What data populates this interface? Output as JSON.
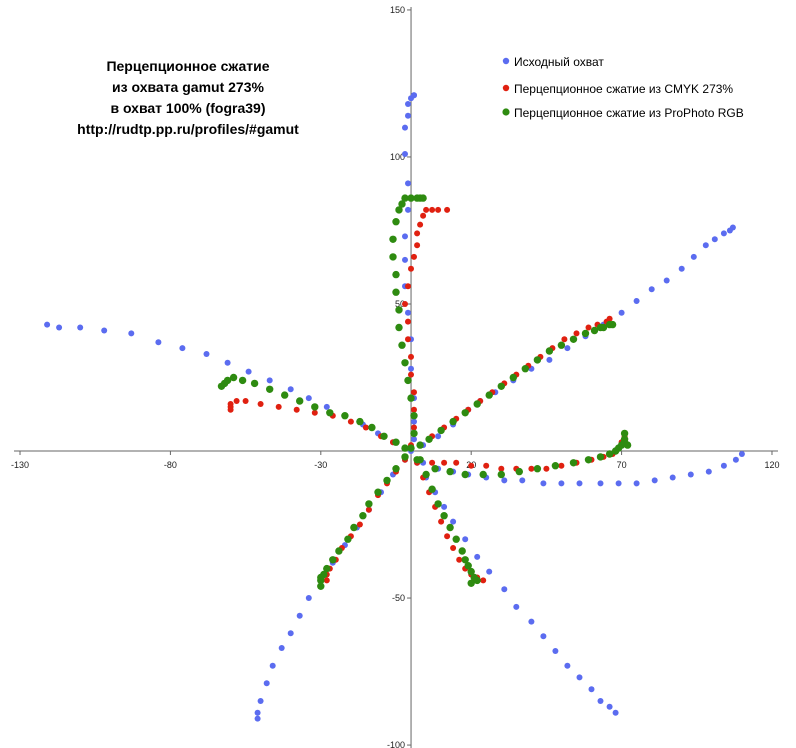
{
  "chart_data": {
    "type": "scatter",
    "title_lines": [
      "Перцепционное сжатие",
      "из охвата gamut 273%",
      "в охват 100% (fogra39)",
      "http://rudtp.pp.ru/profiles/#gamut"
    ],
    "xlim": [
      -132,
      122
    ],
    "ylim": [
      -101,
      151
    ],
    "x_ticks": [
      -130,
      -80,
      -30,
      20,
      70,
      120
    ],
    "x_tick_labels": [
      "-130",
      "-80",
      "-30",
      "20",
      "70",
      "120"
    ],
    "y_ticks": [
      150,
      100,
      50,
      -50,
      -100
    ],
    "y_tick_labels": [
      "150",
      "100",
      "50",
      "-50",
      "-100"
    ],
    "grid": false,
    "legend_position": "top-right",
    "series": [
      {
        "name": "Исходный охват",
        "color": "#5b6cf0",
        "points": [
          [
            0,
            0
          ],
          [
            1,
            4
          ],
          [
            1,
            10
          ],
          [
            1,
            18
          ],
          [
            0,
            28
          ],
          [
            0,
            38
          ],
          [
            -1,
            47
          ],
          [
            -2,
            56
          ],
          [
            -2,
            65
          ],
          [
            -2,
            73
          ],
          [
            -1,
            82
          ],
          [
            -1,
            91
          ],
          [
            -2,
            101
          ],
          [
            -2,
            110
          ],
          [
            -1,
            114
          ],
          [
            -1,
            118
          ],
          [
            0,
            120
          ],
          [
            1,
            121
          ],
          [
            1,
            121
          ],
          [
            4,
            2
          ],
          [
            9,
            5
          ],
          [
            14,
            9
          ],
          [
            19,
            14
          ],
          [
            23,
            17
          ],
          [
            28,
            20
          ],
          [
            34,
            24
          ],
          [
            40,
            28
          ],
          [
            46,
            31
          ],
          [
            52,
            35
          ],
          [
            58,
            39
          ],
          [
            64,
            43
          ],
          [
            70,
            47
          ],
          [
            75,
            51
          ],
          [
            80,
            55
          ],
          [
            85,
            58
          ],
          [
            90,
            62
          ],
          [
            94,
            66
          ],
          [
            98,
            70
          ],
          [
            101,
            72
          ],
          [
            104,
            74
          ],
          [
            106,
            75
          ],
          [
            107,
            76
          ],
          [
            4,
            -4
          ],
          [
            9,
            -6
          ],
          [
            14,
            -7
          ],
          [
            19,
            -8
          ],
          [
            25,
            -9
          ],
          [
            31,
            -10
          ],
          [
            37,
            -10
          ],
          [
            44,
            -11
          ],
          [
            50,
            -11
          ],
          [
            56,
            -11
          ],
          [
            63,
            -11
          ],
          [
            69,
            -11
          ],
          [
            75,
            -11
          ],
          [
            81,
            -10
          ],
          [
            87,
            -9
          ],
          [
            93,
            -8
          ],
          [
            99,
            -7
          ],
          [
            104,
            -5
          ],
          [
            108,
            -3
          ],
          [
            110,
            -1
          ],
          [
            2,
            -4
          ],
          [
            5,
            -9
          ],
          [
            8,
            -14
          ],
          [
            11,
            -19
          ],
          [
            14,
            -24
          ],
          [
            18,
            -30
          ],
          [
            22,
            -36
          ],
          [
            26,
            -41
          ],
          [
            31,
            -47
          ],
          [
            35,
            -53
          ],
          [
            40,
            -58
          ],
          [
            44,
            -63
          ],
          [
            48,
            -68
          ],
          [
            52,
            -73
          ],
          [
            56,
            -77
          ],
          [
            60,
            -81
          ],
          [
            63,
            -85
          ],
          [
            66,
            -87
          ],
          [
            68,
            -89
          ],
          [
            -2,
            -3
          ],
          [
            -6,
            -8
          ],
          [
            -10,
            -14
          ],
          [
            -14,
            -20
          ],
          [
            -18,
            -26
          ],
          [
            -22,
            -32
          ],
          [
            -26,
            -38
          ],
          [
            -30,
            -44
          ],
          [
            -34,
            -50
          ],
          [
            -37,
            -56
          ],
          [
            -40,
            -62
          ],
          [
            -43,
            -67
          ],
          [
            -46,
            -73
          ],
          [
            -48,
            -79
          ],
          [
            -50,
            -85
          ],
          [
            -51,
            -89
          ],
          [
            -51,
            -91
          ],
          [
            -2,
            1
          ],
          [
            -6,
            3
          ],
          [
            -11,
            6
          ],
          [
            -16,
            9
          ],
          [
            -22,
            12
          ],
          [
            -28,
            15
          ],
          [
            -34,
            18
          ],
          [
            -40,
            21
          ],
          [
            -47,
            24
          ],
          [
            -54,
            27
          ],
          [
            -61,
            30
          ],
          [
            -68,
            33
          ],
          [
            -76,
            35
          ],
          [
            -84,
            37
          ],
          [
            -93,
            40
          ],
          [
            -102,
            41
          ],
          [
            -110,
            42
          ],
          [
            -117,
            42
          ],
          [
            -121,
            43
          ]
        ]
      },
      {
        "name": "Перцепционное сжатие из CMYK 273%",
        "color": "#e02010",
        "points": [
          [
            0,
            2
          ],
          [
            1,
            8
          ],
          [
            1,
            14
          ],
          [
            1,
            20
          ],
          [
            0,
            26
          ],
          [
            0,
            32
          ],
          [
            -1,
            38
          ],
          [
            -1,
            44
          ],
          [
            -2,
            50
          ],
          [
            -1,
            56
          ],
          [
            0,
            62
          ],
          [
            1,
            66
          ],
          [
            2,
            70
          ],
          [
            2,
            74
          ],
          [
            3,
            77
          ],
          [
            4,
            80
          ],
          [
            5,
            82
          ],
          [
            7,
            82
          ],
          [
            9,
            82
          ],
          [
            12,
            82
          ],
          [
            3,
            2
          ],
          [
            7,
            5
          ],
          [
            11,
            8
          ],
          [
            15,
            11
          ],
          [
            19,
            14
          ],
          [
            23,
            17
          ],
          [
            27,
            20
          ],
          [
            31,
            23
          ],
          [
            35,
            26
          ],
          [
            39,
            29
          ],
          [
            43,
            32
          ],
          [
            47,
            35
          ],
          [
            51,
            38
          ],
          [
            55,
            40
          ],
          [
            59,
            42
          ],
          [
            62,
            43
          ],
          [
            65,
            44
          ],
          [
            66,
            45
          ],
          [
            3,
            -3
          ],
          [
            7,
            -4
          ],
          [
            11,
            -4
          ],
          [
            15,
            -4
          ],
          [
            20,
            -5
          ],
          [
            25,
            -5
          ],
          [
            30,
            -6
          ],
          [
            35,
            -6
          ],
          [
            40,
            -6
          ],
          [
            45,
            -6
          ],
          [
            50,
            -5
          ],
          [
            55,
            -4
          ],
          [
            60,
            -3
          ],
          [
            64,
            -2
          ],
          [
            67,
            -1
          ],
          [
            69,
            1
          ],
          [
            70,
            3
          ],
          [
            71,
            4
          ],
          [
            71,
            5
          ],
          [
            2,
            -4
          ],
          [
            4,
            -9
          ],
          [
            6,
            -14
          ],
          [
            8,
            -19
          ],
          [
            10,
            -24
          ],
          [
            12,
            -29
          ],
          [
            14,
            -33
          ],
          [
            16,
            -37
          ],
          [
            18,
            -40
          ],
          [
            20,
            -42
          ],
          [
            22,
            -43
          ],
          [
            24,
            -44
          ],
          [
            -2,
            -3
          ],
          [
            -5,
            -7
          ],
          [
            -8,
            -11
          ],
          [
            -11,
            -15
          ],
          [
            -14,
            -20
          ],
          [
            -17,
            -25
          ],
          [
            -20,
            -29
          ],
          [
            -23,
            -33
          ],
          [
            -25,
            -37
          ],
          [
            -27,
            -40
          ],
          [
            -28,
            -42
          ],
          [
            -28,
            -44
          ],
          [
            -2,
            1
          ],
          [
            -6,
            3
          ],
          [
            -10,
            5
          ],
          [
            -15,
            8
          ],
          [
            -20,
            10
          ],
          [
            -26,
            12
          ],
          [
            -32,
            13
          ],
          [
            -38,
            14
          ],
          [
            -44,
            15
          ],
          [
            -50,
            16
          ],
          [
            -55,
            17
          ],
          [
            -58,
            17
          ],
          [
            -60,
            16
          ],
          [
            -60,
            15
          ],
          [
            -60,
            14
          ]
        ]
      },
      {
        "name": "Перцепционное сжатие из ProPhoto RGB",
        "color": "#2e8b10",
        "points": [
          [
            0,
            1
          ],
          [
            1,
            6
          ],
          [
            1,
            12
          ],
          [
            0,
            18
          ],
          [
            -1,
            24
          ],
          [
            -2,
            30
          ],
          [
            -3,
            36
          ],
          [
            -4,
            42
          ],
          [
            -4,
            48
          ],
          [
            -5,
            54
          ],
          [
            -5,
            60
          ],
          [
            -6,
            66
          ],
          [
            -6,
            72
          ],
          [
            -5,
            78
          ],
          [
            -4,
            82
          ],
          [
            -3,
            84
          ],
          [
            -2,
            86
          ],
          [
            0,
            86
          ],
          [
            2,
            86
          ],
          [
            3,
            86
          ],
          [
            4,
            86
          ],
          [
            3,
            2
          ],
          [
            6,
            4
          ],
          [
            10,
            7
          ],
          [
            14,
            10
          ],
          [
            18,
            13
          ],
          [
            22,
            16
          ],
          [
            26,
            19
          ],
          [
            30,
            22
          ],
          [
            34,
            25
          ],
          [
            38,
            28
          ],
          [
            42,
            31
          ],
          [
            46,
            34
          ],
          [
            50,
            36
          ],
          [
            54,
            38
          ],
          [
            58,
            40
          ],
          [
            61,
            41
          ],
          [
            63,
            42
          ],
          [
            64,
            42
          ],
          [
            66,
            43
          ],
          [
            67,
            43
          ],
          [
            3,
            -3
          ],
          [
            8,
            -6
          ],
          [
            13,
            -7
          ],
          [
            18,
            -8
          ],
          [
            24,
            -8
          ],
          [
            30,
            -8
          ],
          [
            36,
            -7
          ],
          [
            42,
            -6
          ],
          [
            48,
            -5
          ],
          [
            54,
            -4
          ],
          [
            59,
            -3
          ],
          [
            63,
            -2
          ],
          [
            66,
            -1
          ],
          [
            68,
            0
          ],
          [
            69,
            1
          ],
          [
            70,
            2
          ],
          [
            71,
            3
          ],
          [
            71,
            4
          ],
          [
            71,
            6
          ],
          [
            72,
            2
          ],
          [
            2,
            -3
          ],
          [
            5,
            -8
          ],
          [
            7,
            -13
          ],
          [
            9,
            -18
          ],
          [
            11,
            -22
          ],
          [
            13,
            -26
          ],
          [
            15,
            -30
          ],
          [
            17,
            -34
          ],
          [
            18,
            -37
          ],
          [
            19,
            -39
          ],
          [
            20,
            -41
          ],
          [
            21,
            -43
          ],
          [
            22,
            -44
          ],
          [
            20,
            -45
          ],
          [
            -2,
            -2
          ],
          [
            -5,
            -6
          ],
          [
            -8,
            -10
          ],
          [
            -11,
            -14
          ],
          [
            -14,
            -18
          ],
          [
            -16,
            -22
          ],
          [
            -19,
            -26
          ],
          [
            -21,
            -30
          ],
          [
            -24,
            -34
          ],
          [
            -26,
            -37
          ],
          [
            -28,
            -40
          ],
          [
            -29,
            -42
          ],
          [
            -30,
            -44
          ],
          [
            -30,
            -46
          ],
          [
            -30,
            -43
          ],
          [
            -2,
            1
          ],
          [
            -5,
            3
          ],
          [
            -9,
            5
          ],
          [
            -13,
            8
          ],
          [
            -17,
            10
          ],
          [
            -22,
            12
          ],
          [
            -27,
            13
          ],
          [
            -32,
            15
          ],
          [
            -37,
            17
          ],
          [
            -42,
            19
          ],
          [
            -47,
            21
          ],
          [
            -52,
            23
          ],
          [
            -56,
            24
          ],
          [
            -59,
            25
          ],
          [
            -61,
            24
          ],
          [
            -62,
            23
          ],
          [
            -63,
            22
          ]
        ]
      }
    ]
  }
}
